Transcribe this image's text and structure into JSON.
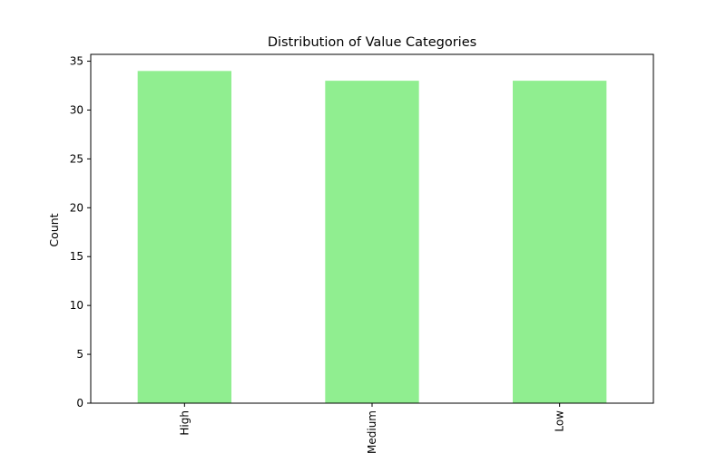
{
  "chart_data": {
    "type": "bar",
    "title": "Distribution of Value Categories",
    "xlabel": "",
    "ylabel": "Count",
    "categories": [
      "High",
      "Medium",
      "Low"
    ],
    "values": [
      34,
      33,
      33
    ],
    "ylim": [
      0,
      35.7
    ],
    "yticks": [
      0,
      5,
      10,
      15,
      20,
      25,
      30,
      35
    ],
    "ytick_labels": [
      "0",
      "5",
      "10",
      "15",
      "20",
      "25",
      "30",
      "35"
    ],
    "bar_color": "#90ee90",
    "grid": false,
    "legend": "none"
  }
}
